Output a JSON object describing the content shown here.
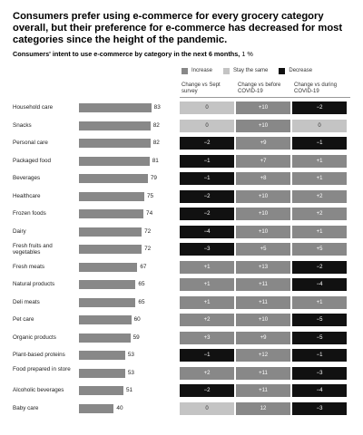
{
  "headline": "Consumers prefer using e-commerce for every grocery category overall, but their preference for e-commerce has decreased for most categories since the height of the pandemic.",
  "subhead": "Consumers' intent to use e-commerce by category in the next 6 months,",
  "unit": "1 %",
  "legend": [
    {
      "label": "Increase",
      "color": "#888888"
    },
    {
      "label": "Stay the same",
      "color": "#c4c4c4"
    },
    {
      "label": "Decrease",
      "color": "#111111"
    }
  ],
  "columns": [
    "Change vs Sept survey",
    "Change vs before COVID-19",
    "Change vs during COVID-19"
  ],
  "colors": {
    "bar": "#888888",
    "increase": "#888888",
    "same": "#c4c4c4",
    "decrease": "#111111"
  },
  "chart_data": {
    "type": "bar",
    "orientation": "horizontal",
    "categories": [
      "Household care",
      "Snacks",
      "Personal care",
      "Packaged food",
      "Beverages",
      "Healthcare",
      "Frozen foods",
      "Dairy",
      "Fresh fruits and vegetables",
      "Fresh meats",
      "Natural products",
      "Deli meats",
      "Pet care",
      "Organic products",
      "Plant-based proteins",
      "Food prepared in store",
      "Alcoholic beverages",
      "Baby care"
    ],
    "values": [
      83,
      82,
      82,
      81,
      79,
      75,
      74,
      72,
      72,
      67,
      65,
      65,
      60,
      59,
      53,
      53,
      51,
      40
    ],
    "changes": [
      [
        "0",
        "+10",
        "−2"
      ],
      [
        "0",
        "+10",
        "0"
      ],
      [
        "−2",
        "+9",
        "−1"
      ],
      [
        "−1",
        "+7",
        "+1"
      ],
      [
        "−1",
        "+8",
        "+1"
      ],
      [
        "−2",
        "+10",
        "+2"
      ],
      [
        "−2",
        "+10",
        "+2"
      ],
      [
        "−4",
        "+10",
        "+1"
      ],
      [
        "−3",
        "+5",
        "+5"
      ],
      [
        "+1",
        "+13",
        "−2"
      ],
      [
        "+1",
        "+11",
        "−4"
      ],
      [
        "+1",
        "+11",
        "+1"
      ],
      [
        "+2",
        "+10",
        "−5"
      ],
      [
        "+3",
        "+9",
        "−5"
      ],
      [
        "−1",
        "+12",
        "−1"
      ],
      [
        "+2",
        "+11",
        "−3"
      ],
      [
        "−2",
        "+11",
        "−4"
      ],
      [
        "0",
        "12",
        "−3"
      ]
    ]
  }
}
